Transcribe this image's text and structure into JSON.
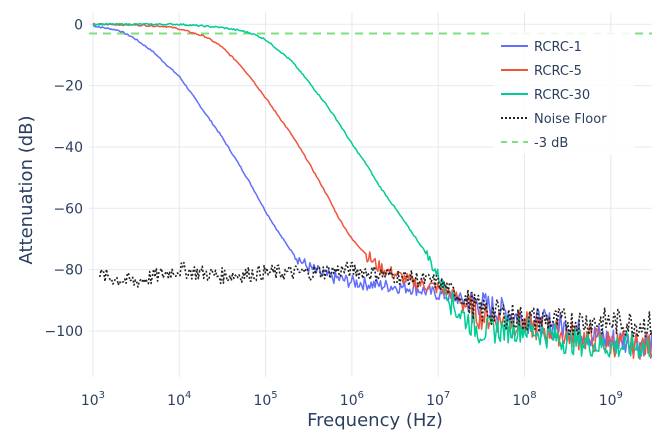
{
  "chart_data": {
    "type": "line",
    "xlabel": "Frequency (Hz)",
    "ylabel": "Attenuation (dB)",
    "x_scale": "log",
    "xlim": [
      900,
      3000000000
    ],
    "ylim": [
      -115,
      4
    ],
    "grid": true,
    "legend_position": "top-right",
    "x_ticks": [
      {
        "value": 1000,
        "base": "10",
        "exp": "3"
      },
      {
        "value": 10000,
        "base": "10",
        "exp": "4"
      },
      {
        "value": 100000,
        "base": "10",
        "exp": "5"
      },
      {
        "value": 1000000,
        "base": "10",
        "exp": "6"
      },
      {
        "value": 10000000,
        "base": "10",
        "exp": "7"
      },
      {
        "value": 100000000,
        "base": "10",
        "exp": "8"
      },
      {
        "value": 1000000000,
        "base": "10",
        "exp": "9"
      }
    ],
    "y_ticks": [
      {
        "value": 0,
        "label": "0"
      },
      {
        "value": -20,
        "label": "−20"
      },
      {
        "value": -40,
        "label": "−40"
      },
      {
        "value": -60,
        "label": "−60"
      },
      {
        "value": -80,
        "label": "−80"
      },
      {
        "value": -100,
        "label": "−100"
      }
    ],
    "series": [
      {
        "name": "RCRC-1",
        "color": "#636efa",
        "style": "solid",
        "x": [
          1000,
          2000,
          3000,
          5000,
          7000,
          10000,
          15000,
          20000,
          30000,
          50000,
          70000,
          100000,
          150000,
          200000,
          300000,
          500000,
          700000,
          1000000,
          2000000,
          5000000,
          10000000,
          30000000,
          100000000,
          300000000,
          1000000000,
          3000000000
        ],
        "y": [
          -0.5,
          -2,
          -4.5,
          -9,
          -13,
          -17,
          -24,
          -29,
          -36,
          -46,
          -53,
          -61,
          -69,
          -74,
          -79,
          -82,
          -83,
          -84,
          -85,
          -86,
          -88,
          -91,
          -96,
          -99,
          -103,
          -104
        ]
      },
      {
        "name": "RCRC-5",
        "color": "#ef553b",
        "style": "solid",
        "x": [
          1000,
          3000,
          7000,
          10000,
          20000,
          30000,
          50000,
          70000,
          100000,
          150000,
          200000,
          300000,
          500000,
          700000,
          1000000,
          2000000,
          5000000,
          10000000,
          15000000,
          30000000,
          100000000,
          300000000,
          1000000000,
          3000000000
        ],
        "y": [
          0,
          -0.2,
          -0.7,
          -1.5,
          -4,
          -7,
          -13,
          -18,
          -24,
          -31,
          -36,
          -44,
          -55,
          -63,
          -70,
          -79,
          -84,
          -86,
          -88,
          -95,
          -98,
          -101,
          -104,
          -105
        ]
      },
      {
        "name": "RCRC-30",
        "color": "#00cc96",
        "style": "solid",
        "x": [
          1000,
          10000,
          30000,
          50000,
          70000,
          100000,
          150000,
          200000,
          300000,
          500000,
          700000,
          1000000,
          1500000,
          2000000,
          3000000,
          5000000,
          7000000,
          10000000,
          15000000,
          30000000,
          100000000,
          300000000,
          1000000000,
          3000000000
        ],
        "y": [
          0,
          0,
          -1,
          -2,
          -3,
          -5,
          -9,
          -12,
          -18,
          -26,
          -32,
          -39,
          -46,
          -52,
          -59,
          -68,
          -74,
          -82,
          -92,
          -100,
          -99,
          -103,
          -105,
          -105
        ]
      },
      {
        "name": "Noise Floor",
        "color": "#222222",
        "style": "dotted",
        "x": [
          1200,
          3000,
          10000,
          30000,
          100000,
          300000,
          1000000,
          3000000,
          10000000,
          30000000,
          100000000,
          300000000,
          1000000000,
          3000000000
        ],
        "y": [
          -82,
          -84,
          -80,
          -82,
          -81,
          -81,
          -80,
          -82,
          -84,
          -93,
          -96,
          -97,
          -97,
          -98
        ]
      },
      {
        "name": "-3 dB",
        "color": "#7ee07e",
        "style": "dashed",
        "x": [
          900,
          3000000000
        ],
        "y": [
          -3,
          -3
        ]
      }
    ]
  }
}
